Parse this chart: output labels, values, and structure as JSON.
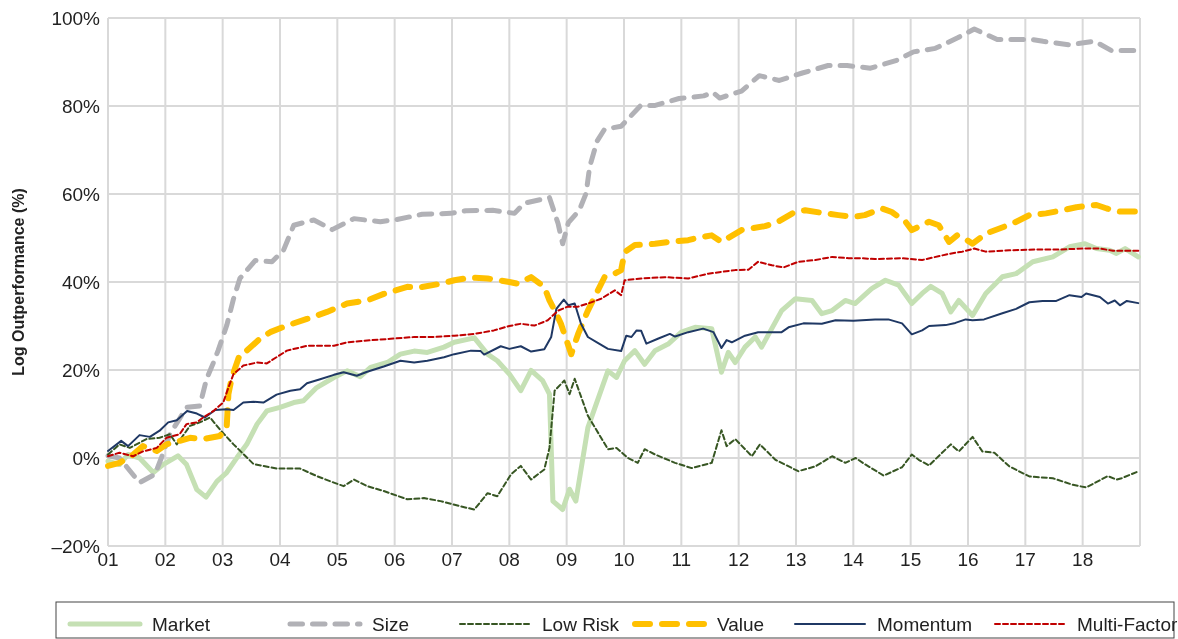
{
  "chart_data": {
    "type": "line",
    "ylabel": "Log Outperformance (%)",
    "xlim": [
      2001,
      2019
    ],
    "xticks": [
      {
        "value": 2001,
        "label": "01"
      },
      {
        "value": 2002,
        "label": "02"
      },
      {
        "value": 2003,
        "label": "03"
      },
      {
        "value": 2004,
        "label": "04"
      },
      {
        "value": 2005,
        "label": "05"
      },
      {
        "value": 2006,
        "label": "06"
      },
      {
        "value": 2007,
        "label": "07"
      },
      {
        "value": 2008,
        "label": "08"
      },
      {
        "value": 2009,
        "label": "09"
      },
      {
        "value": 2010,
        "label": "10"
      },
      {
        "value": 2011,
        "label": "11"
      },
      {
        "value": 2012,
        "label": "12"
      },
      {
        "value": 2013,
        "label": "13"
      },
      {
        "value": 2014,
        "label": "14"
      },
      {
        "value": 2015,
        "label": "15"
      },
      {
        "value": 2016,
        "label": "16"
      },
      {
        "value": 2017,
        "label": "17"
      },
      {
        "value": 2018,
        "label": "18"
      },
      {
        "value": 2019,
        "label": null
      }
    ],
    "ylim": [
      -20,
      100
    ],
    "yticks": [
      {
        "value": -20,
        "label": "–20%"
      },
      {
        "value": 0,
        "label": "0%"
      },
      {
        "value": 20,
        "label": "20%"
      },
      {
        "value": 40,
        "label": "40%"
      },
      {
        "value": 60,
        "label": "60%"
      },
      {
        "value": 80,
        "label": "80%"
      },
      {
        "value": 100,
        "label": "100%"
      }
    ],
    "grid": true,
    "legend": "bottom",
    "marker": "none",
    "series": [
      {
        "name": "Market",
        "color": "#c5e0b4",
        "line_style": "solid",
        "x": [
          2001,
          2001.2,
          2001.35,
          2001.55,
          2001.79,
          2001.96,
          2002.22,
          2002.37,
          2002.55,
          2002.71,
          2002.9,
          2003.07,
          2003.25,
          2003.42,
          2003.6,
          2003.77,
          2004,
          2004.24,
          2004.41,
          2004.64,
          2004.94,
          2005.17,
          2005.4,
          2005.58,
          2005.87,
          2006.1,
          2006.34,
          2006.57,
          2006.86,
          2007.04,
          2007.39,
          2007.62,
          2007.79,
          2008,
          2008.2,
          2008.38,
          2008.58,
          2008.7,
          2008.76,
          2008.93,
          2009.05,
          2009.16,
          2009.37,
          2009.72,
          2009.87,
          2010.01,
          2010.19,
          2010.36,
          2010.54,
          2010.77,
          2011,
          2011.24,
          2011.53,
          2011.7,
          2011.82,
          2011.94,
          2012.11,
          2012.29,
          2012.4,
          2012.75,
          2012.99,
          2013.28,
          2013.45,
          2013.63,
          2013.86,
          2014.03,
          2014.32,
          2014.56,
          2014.79,
          2015.02,
          2015.2,
          2015.35,
          2015.55,
          2015.7,
          2015.84,
          2016.08,
          2016.31,
          2016.6,
          2016.84,
          2017.13,
          2017.48,
          2017.77,
          2018.04,
          2018.24,
          2018.47,
          2018.59,
          2018.74,
          2018.97
        ],
        "values": [
          -0.7,
          -1.5,
          0.8,
          0,
          -3.3,
          -1.5,
          0.5,
          -1.5,
          -7.2,
          -8.9,
          -5.3,
          -3.3,
          0.1,
          3.1,
          7.7,
          10.7,
          11.5,
          12.6,
          13,
          16,
          18.3,
          19.8,
          18.5,
          20.6,
          21.7,
          23.6,
          24.3,
          24,
          25.2,
          26.3,
          27.3,
          23.6,
          22.1,
          19.1,
          15.3,
          19.9,
          17.6,
          14.5,
          -9.8,
          -11.7,
          -7.1,
          -9.8,
          6.9,
          19.8,
          18.3,
          22.1,
          24.4,
          21.3,
          24.4,
          25.9,
          28.6,
          29.7,
          29.4,
          19.5,
          24,
          21.7,
          25.2,
          27.5,
          25.2,
          33.5,
          36.2,
          35.8,
          32.8,
          33.5,
          35.8,
          35.1,
          38.5,
          40.4,
          39.3,
          35.1,
          37.4,
          39,
          37.4,
          33.2,
          35.8,
          32.4,
          37.4,
          41.2,
          41.9,
          44.6,
          45.7,
          48,
          48.7,
          47.6,
          47.2,
          46.5,
          47.6,
          45.7
        ]
      },
      {
        "name": "Size",
        "color": "#b1b1b6",
        "line_style": "dashed",
        "x": [
          2001,
          2001.2,
          2001.55,
          2001.82,
          2001.93,
          2002.08,
          2002.37,
          2002.6,
          2002.72,
          2002.84,
          2002.92,
          2003.07,
          2003.19,
          2003.3,
          2003.57,
          2003.86,
          2004.06,
          2004.24,
          2004.59,
          2004.91,
          2005.29,
          2005.75,
          2006.04,
          2006.48,
          2006.98,
          2007.24,
          2007.71,
          2008.09,
          2008.26,
          2008.7,
          2008.85,
          2008.93,
          2009.03,
          2009.22,
          2009.34,
          2009.4,
          2009.53,
          2009.66,
          2009.95,
          2010.29,
          2010.53,
          2010.96,
          2011.39,
          2011.55,
          2011.67,
          2012.05,
          2012.36,
          2012.71,
          2013.11,
          2013.56,
          2013.89,
          2014.3,
          2014.76,
          2015.05,
          2015.43,
          2015.82,
          2016.11,
          2016.51,
          2017.13,
          2017.31,
          2017.76,
          2018.21,
          2018.5,
          2018.89
        ],
        "values": [
          0.5,
          0,
          -5.6,
          -3.7,
          0,
          5.4,
          11.5,
          11.8,
          18,
          21.7,
          24.4,
          30.1,
          36.2,
          40.8,
          44.9,
          44.6,
          47.2,
          52.9,
          54.1,
          51.9,
          54.4,
          53.7,
          54.2,
          55.4,
          55.6,
          56.2,
          56.3,
          55.6,
          57.9,
          59.2,
          53.3,
          48.7,
          53.5,
          56.3,
          60.2,
          66.1,
          72,
          74.7,
          75.4,
          80.1,
          80.1,
          81.7,
          82.3,
          83.1,
          81.8,
          83.4,
          86.9,
          85.8,
          87.5,
          89.2,
          89.2,
          88.6,
          90.4,
          92.3,
          93.1,
          95.5,
          97.5,
          95.1,
          95.1,
          94.7,
          93.9,
          94.7,
          92.6,
          92.6
        ]
      },
      {
        "name": "Low Risk",
        "color": "#375623",
        "line_style": "dashed",
        "x": [
          2001,
          2001.2,
          2001.38,
          2001.67,
          2001.9,
          2002.08,
          2002.2,
          2002.43,
          2002.6,
          2002.78,
          2002.95,
          2003.19,
          2003.54,
          2003.94,
          2004.35,
          2004.64,
          2004.94,
          2005.11,
          2005.29,
          2005.52,
          2005.81,
          2006.22,
          2006.51,
          2006.8,
          2007.15,
          2007.39,
          2007.62,
          2007.79,
          2008.03,
          2008.2,
          2008.38,
          2008.61,
          2008.7,
          2008.79,
          2008.96,
          2009.05,
          2009.14,
          2009.37,
          2009.72,
          2009.87,
          2010.07,
          2010.24,
          2010.36,
          2010.54,
          2010.89,
          2011.18,
          2011.53,
          2011.7,
          2011.79,
          2011.94,
          2012.23,
          2012.37,
          2012.64,
          2013.04,
          2013.34,
          2013.63,
          2013.86,
          2014.04,
          2014.2,
          2014.53,
          2014.85,
          2015.02,
          2015.14,
          2015.32,
          2015.7,
          2015.84,
          2016.08,
          2016.25,
          2016.46,
          2016.72,
          2017.07,
          2017.48,
          2017.83,
          2018.06,
          2018.44,
          2018.59,
          2018.68,
          2018.94
        ],
        "values": [
          0.8,
          3.1,
          2.3,
          4.3,
          4.6,
          5.4,
          3.1,
          7.3,
          8.1,
          9.2,
          6.5,
          3.1,
          -1.4,
          -2.4,
          -2.4,
          -4.1,
          -5.6,
          -6.4,
          -4.9,
          -6.4,
          -7.5,
          -9.4,
          -9.1,
          -9.8,
          -11,
          -11.7,
          -8,
          -8.7,
          -3.7,
          -1.8,
          -4.9,
          -2.6,
          2.3,
          15.3,
          17.6,
          14.5,
          18,
          9.6,
          2,
          2.3,
          0,
          -1.1,
          2,
          0.8,
          -1.1,
          -2.3,
          -1.1,
          6.3,
          2.7,
          4.3,
          0.4,
          3.1,
          -0.4,
          -3,
          -1.9,
          0.4,
          -1.1,
          0,
          -1.4,
          -4,
          -2.1,
          0.8,
          -0.4,
          -1.7,
          3.1,
          1.5,
          4.8,
          1.5,
          1.2,
          -1.9,
          -4.2,
          -4.6,
          -6.1,
          -6.7,
          -4.1,
          -4.9,
          -4.6,
          -3.2
        ]
      },
      {
        "name": "Value",
        "color": "#ffc000",
        "line_style": "dashed",
        "x": [
          2001,
          2001.2,
          2001.44,
          2001.61,
          2001.85,
          2002.02,
          2002.25,
          2002.43,
          2002.66,
          2002.95,
          2003.07,
          2003.1,
          2003.16,
          2003.3,
          2003.42,
          2003.65,
          2003.83,
          2004.12,
          2004.47,
          2004.82,
          2005.17,
          2005.52,
          2005.81,
          2006.22,
          2006.4,
          2006.8,
          2007.04,
          2007.33,
          2007.62,
          2008,
          2008.15,
          2008.38,
          2008.61,
          2008.7,
          2008.82,
          2008.9,
          2009.08,
          2009.2,
          2009.37,
          2009.66,
          2009.78,
          2009.95,
          2010.01,
          2010.19,
          2010.54,
          2010.77,
          2011.12,
          2011.24,
          2011.53,
          2011.7,
          2012.05,
          2012.46,
          2012.69,
          2012.99,
          2013.16,
          2013.51,
          2013.74,
          2014,
          2014.2,
          2014.5,
          2014.67,
          2014.91,
          2015.02,
          2015.32,
          2015.49,
          2015.67,
          2015.81,
          2015.9,
          2016.08,
          2016.31,
          2016.78,
          2017.07,
          2017.36,
          2017.65,
          2017.89,
          2018.24,
          2018.42,
          2018.65,
          2018.91
        ],
        "values": [
          -1.8,
          -1.1,
          0.8,
          2.7,
          1.6,
          3.1,
          3.9,
          4.6,
          4.3,
          5,
          6.9,
          14.5,
          18.3,
          23.6,
          24.4,
          27.1,
          28.6,
          30.1,
          31.6,
          33.2,
          35.1,
          35.8,
          37.3,
          38.9,
          38.7,
          39.6,
          40.4,
          41,
          40.8,
          40,
          39.6,
          41.1,
          38.9,
          35.8,
          32.8,
          30.5,
          23.6,
          28.2,
          33.5,
          41.1,
          41.5,
          42.7,
          46.8,
          48.4,
          48.7,
          49.1,
          49.5,
          49.9,
          50.6,
          49.1,
          51.8,
          52.7,
          53.7,
          56,
          56.3,
          55.6,
          55.2,
          54.8,
          55.2,
          56.7,
          55.9,
          53.7,
          51.8,
          53.7,
          52.9,
          49.1,
          50.6,
          50.2,
          48.7,
          51,
          53.3,
          55.2,
          55.6,
          56.3,
          57,
          57.5,
          56.7,
          56,
          56
        ]
      },
      {
        "name": "Momentum",
        "color": "#1f3864",
        "line_style": "solid",
        "x": [
          2001,
          2001.23,
          2001.35,
          2001.55,
          2001.73,
          2001.9,
          2002.05,
          2002.2,
          2002.38,
          2002.55,
          2002.69,
          2002.87,
          2003.07,
          2003.19,
          2003.36,
          2003.54,
          2003.71,
          2003.94,
          2004.18,
          2004.35,
          2004.47,
          2004.7,
          2004.94,
          2005.11,
          2005.34,
          2005.52,
          2005.81,
          2006.1,
          2006.34,
          2006.57,
          2006.86,
          2007.04,
          2007.33,
          2007.5,
          2007.56,
          2007.85,
          2008,
          2008.2,
          2008.38,
          2008.61,
          2008.73,
          2008.82,
          2008.95,
          2009.03,
          2009.14,
          2009.25,
          2009.37,
          2009.55,
          2009.72,
          2009.95,
          2010.04,
          2010.13,
          2010.22,
          2010.3,
          2010.39,
          2010.59,
          2010.8,
          2010.89,
          2011.12,
          2011.38,
          2011.56,
          2011.7,
          2011.79,
          2011.88,
          2012.11,
          2012.34,
          2012.75,
          2012.87,
          2013.13,
          2013.45,
          2013.69,
          2014,
          2014.38,
          2014.61,
          2014.85,
          2015.02,
          2015.2,
          2015.32,
          2015.61,
          2015.78,
          2015.96,
          2016.08,
          2016.28,
          2016.6,
          2016.84,
          2017.07,
          2017.3,
          2017.54,
          2017.77,
          2017.98,
          2018.06,
          2018.3,
          2018.44,
          2018.56,
          2018.65,
          2018.77,
          2018.97
        ],
        "values": [
          1.6,
          3.9,
          2.7,
          5.2,
          4.8,
          6.2,
          8.1,
          8.6,
          10.7,
          10.1,
          9.2,
          10.9,
          11.1,
          10.9,
          12.6,
          12.8,
          12.6,
          14.4,
          15.3,
          15.6,
          17,
          17.9,
          18.9,
          19.5,
          18.7,
          19.6,
          20.8,
          22.1,
          21.7,
          22.1,
          22.9,
          23.6,
          24.4,
          24.3,
          23.5,
          25.4,
          24.8,
          25.4,
          24.2,
          24.7,
          27.5,
          33.9,
          36,
          34.7,
          35.1,
          30.5,
          27.5,
          26.1,
          24.8,
          24.3,
          27.8,
          27.5,
          29,
          28.9,
          26,
          27.1,
          28.2,
          27.6,
          28.6,
          29.4,
          28.6,
          25,
          26.8,
          26.3,
          27.8,
          28.6,
          28.6,
          29.7,
          30.6,
          30.5,
          31.3,
          31.2,
          31.5,
          31.5,
          30.6,
          28.1,
          29,
          30,
          30.2,
          30.7,
          31.5,
          31.3,
          31.5,
          32.9,
          33.9,
          35.4,
          35.7,
          35.7,
          37,
          36.6,
          37.4,
          36.6,
          35.1,
          35.8,
          34.7,
          35.7,
          35.2
        ]
      },
      {
        "name": "Multi-Factor",
        "color": "#c00000",
        "line_style": "dashed",
        "x": [
          2001,
          2001.2,
          2001.44,
          2001.61,
          2001.85,
          2002.02,
          2002.25,
          2002.37,
          2002.55,
          2002.66,
          2002.84,
          2003.01,
          2003.1,
          2003.19,
          2003.36,
          2003.6,
          2003.77,
          2004.12,
          2004.47,
          2004.94,
          2005.17,
          2005.52,
          2005.93,
          2006.34,
          2006.69,
          2007.04,
          2007.39,
          2007.73,
          2008,
          2008.2,
          2008.44,
          2008.67,
          2008.85,
          2009.02,
          2009.2,
          2009.37,
          2009.6,
          2009.84,
          2009.95,
          2010.01,
          2010.3,
          2010.71,
          2011.12,
          2011.47,
          2011.94,
          2012.17,
          2012.34,
          2012.58,
          2012.78,
          2013.04,
          2013.34,
          2013.63,
          2013.92,
          2014.15,
          2014.38,
          2014.85,
          2015.2,
          2015.67,
          2015.9,
          2016.11,
          2016.31,
          2016.72,
          2017.25,
          2017.6,
          2018.01,
          2018.3,
          2018.53,
          2018.97
        ],
        "values": [
          0.4,
          1.2,
          0.4,
          1.5,
          2.3,
          4.6,
          5.4,
          7.7,
          8.1,
          9.2,
          10.7,
          12.6,
          16,
          19.1,
          21,
          21.7,
          21.5,
          24.4,
          25.5,
          25.5,
          26.3,
          26.7,
          27.1,
          27.5,
          27.5,
          27.8,
          28.2,
          29,
          30,
          30.5,
          30.1,
          31.3,
          33.5,
          34.4,
          34.4,
          35.1,
          36.2,
          38.1,
          37,
          40.4,
          40.8,
          41.1,
          40.8,
          41.9,
          42.7,
          42.8,
          44.6,
          43.8,
          43.3,
          44.6,
          45,
          45.7,
          45.4,
          45.4,
          45.2,
          45.4,
          45,
          46.4,
          46.9,
          47.6,
          46.9,
          47.2,
          47.4,
          47.4,
          47.6,
          47.6,
          47.1,
          47.1
        ]
      }
    ]
  }
}
